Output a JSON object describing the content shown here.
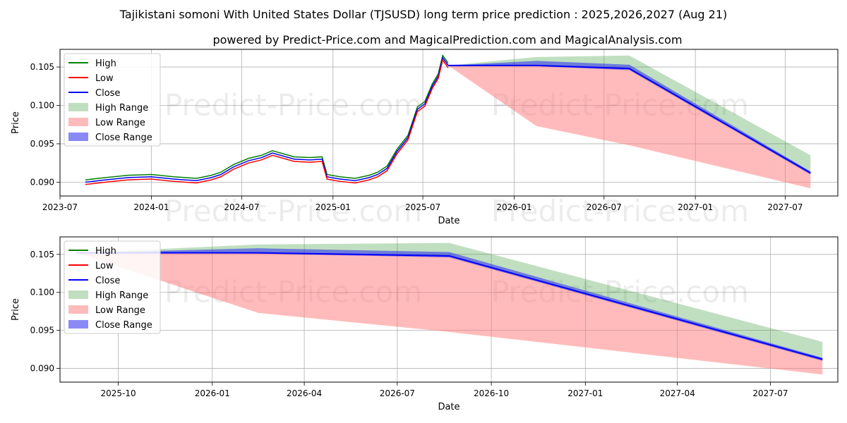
{
  "title": "Tajikistani somoni With United States Dollar (TJSUSD) long term price prediction : 2025,2026,2027 (Aug 21)",
  "subtitle": "powered by Predict-Price.com and MagicalPrediction.com and MagicalAnalysis.com",
  "watermark": "Predict-Price.com",
  "colors": {
    "high": "#008000",
    "low": "#ff0000",
    "close": "#0000ff",
    "high_range": "#3a9c3a",
    "low_range": "#ff7777",
    "close_range": "#2a2aee",
    "grid": "#b0b0b0"
  },
  "chart_data": [
    {
      "type": "line",
      "panel": "top",
      "xlabel": "Date",
      "ylabel": "Price",
      "xlim": [
        "2023-07-01",
        "2027-10-15"
      ],
      "ylim": [
        0.0882,
        0.1073
      ],
      "x_ticks": [
        "2023-07",
        "2024-01",
        "2024-07",
        "2025-01",
        "2025-07",
        "2026-01",
        "2026-07",
        "2027-01",
        "2027-07"
      ],
      "y_ticks": [
        "0.090",
        "0.095",
        "0.100",
        "0.105"
      ],
      "grid": true,
      "legend": {
        "placement": "top-left",
        "entries": [
          "High",
          "Low",
          "Close",
          "High Range",
          "Low Range",
          "Close Range"
        ]
      },
      "historical": {
        "x": [
          "2023-08-21",
          "2023-10-01",
          "2023-11-15",
          "2024-01-01",
          "2024-02-15",
          "2024-04-01",
          "2024-05-01",
          "2024-05-20",
          "2024-06-15",
          "2024-07-15",
          "2024-08-10",
          "2024-09-01",
          "2024-10-15",
          "2024-11-15",
          "2024-12-10",
          "2024-12-20",
          "2025-01-15",
          "2025-02-15",
          "2025-03-15",
          "2025-04-01",
          "2025-04-20",
          "2025-05-10",
          "2025-06-01",
          "2025-06-20",
          "2025-07-05",
          "2025-07-20",
          "2025-08-01",
          "2025-08-10",
          "2025-08-21"
        ],
        "close": [
          0.09,
          0.0903,
          0.0906,
          0.0907,
          0.0904,
          0.0902,
          0.0906,
          0.091,
          0.092,
          0.0928,
          0.0932,
          0.0938,
          0.093,
          0.0929,
          0.093,
          0.0907,
          0.0904,
          0.0902,
          0.0906,
          0.091,
          0.0918,
          0.094,
          0.0958,
          0.0995,
          0.1002,
          0.1025,
          0.1038,
          0.1062,
          0.1052
        ],
        "high_offset": 0.0003,
        "low_offset": 0.0003
      },
      "forecast": {
        "x": [
          "2025-08-21",
          "2026-02-15",
          "2026-08-21",
          "2027-08-21"
        ],
        "high_range": [
          0.1052,
          0.1063,
          0.1065,
          0.0935
        ],
        "low_range": [
          0.1052,
          0.0973,
          0.0948,
          0.0892
        ],
        "close_range_upper": [
          0.1052,
          0.1058,
          0.1053,
          0.0914
        ],
        "close_range_lower": [
          0.1052,
          0.1051,
          0.1046,
          0.091
        ],
        "close": [
          0.1052,
          0.1052,
          0.1048,
          0.0912
        ]
      }
    },
    {
      "type": "line",
      "panel": "bottom",
      "xlabel": "Date",
      "ylabel": "Price",
      "xlim": [
        "2025-08-05",
        "2027-09-05"
      ],
      "ylim": [
        0.0882,
        0.1073
      ],
      "x_ticks": [
        "2025-10",
        "2026-01",
        "2026-04",
        "2026-07",
        "2026-10",
        "2027-01",
        "2027-04",
        "2027-07"
      ],
      "y_ticks": [
        "0.090",
        "0.095",
        "0.100",
        "0.105"
      ],
      "grid": true,
      "legend": {
        "placement": "top-left",
        "entries": [
          "High",
          "Low",
          "Close",
          "High Range",
          "Low Range",
          "Close Range"
        ]
      },
      "forecast": {
        "x": [
          "2025-08-21",
          "2026-02-15",
          "2026-08-21",
          "2027-08-21"
        ],
        "high_range": [
          0.1052,
          0.1063,
          0.1065,
          0.0935
        ],
        "low_range": [
          0.1052,
          0.0973,
          0.0948,
          0.0892
        ],
        "close_range_upper": [
          0.1052,
          0.1058,
          0.1053,
          0.0914
        ],
        "close_range_lower": [
          0.1052,
          0.1051,
          0.1046,
          0.091
        ],
        "close": [
          0.1052,
          0.1052,
          0.1048,
          0.0912
        ]
      }
    }
  ]
}
